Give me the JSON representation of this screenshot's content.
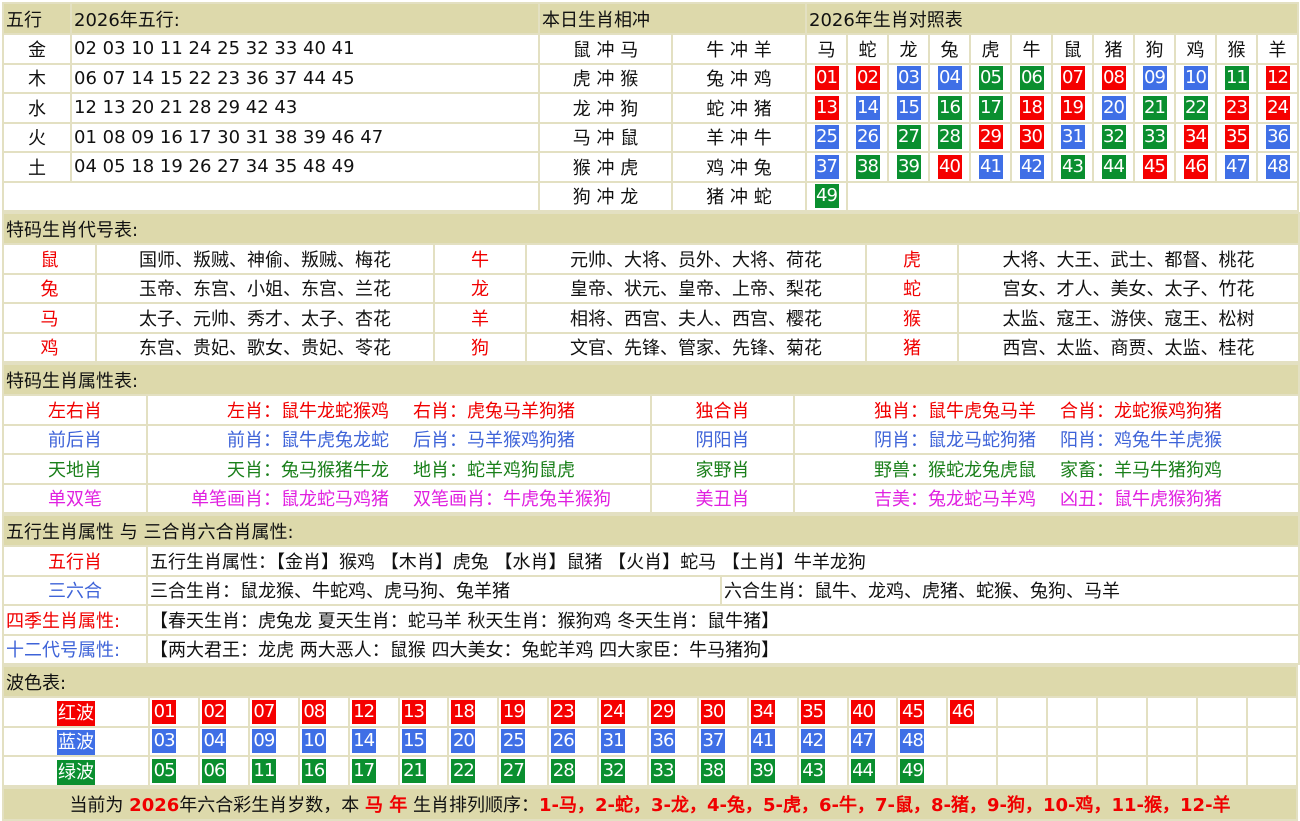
{
  "wuxing": {
    "header": "五行",
    "numbers_header": "2026年五行:",
    "chong_header": "本日生肖相冲",
    "table_header": "2026年生肖对照表",
    "rows": [
      {
        "el": "金",
        "nums": "02 03 10 11 24 25 32 33 40 41"
      },
      {
        "el": "木",
        "nums": "06 07 14 15 22 23 36 37 44 45"
      },
      {
        "el": "水",
        "nums": "12 13 20 21 28 29 42 43"
      },
      {
        "el": "火",
        "nums": "01 08 09 16 17 30 31 38 39 46 47"
      },
      {
        "el": "土",
        "nums": "04 05 18 19 26 27 34 35 48 49"
      }
    ],
    "chong": [
      [
        "鼠 冲 马",
        "牛 冲 羊"
      ],
      [
        "虎 冲 猴",
        "兔 冲 鸡"
      ],
      [
        "龙 冲 狗",
        "蛇 冲 猪"
      ],
      [
        "马 冲 鼠",
        "羊 冲 牛"
      ],
      [
        "猴 冲 虎",
        "鸡 冲 兔"
      ],
      [
        "狗 冲 龙",
        "猪 冲 蛇"
      ]
    ],
    "zodiac": [
      "马",
      "蛇",
      "龙",
      "兔",
      "虎",
      "牛",
      "鼠",
      "猪",
      "狗",
      "鸡",
      "猴",
      "羊"
    ],
    "grid": [
      [
        "01",
        "02",
        "03",
        "04",
        "05",
        "06",
        "07",
        "08",
        "09",
        "10",
        "11",
        "12"
      ],
      [
        "13",
        "14",
        "15",
        "16",
        "17",
        "18",
        "19",
        "20",
        "21",
        "22",
        "23",
        "24"
      ],
      [
        "25",
        "26",
        "27",
        "28",
        "29",
        "30",
        "31",
        "32",
        "33",
        "34",
        "35",
        "36"
      ],
      [
        "37",
        "38",
        "39",
        "40",
        "41",
        "42",
        "43",
        "44",
        "45",
        "46",
        "47",
        "48"
      ],
      [
        "49"
      ]
    ]
  },
  "colors": {
    "red": "#f50000",
    "blue": "#3f6fe6",
    "green": "#0a8f2f",
    "header_bg": "#ddd9ab"
  },
  "waves": [
    {
      "label": "红波",
      "color": "red",
      "nums": [
        "01",
        "02",
        "07",
        "08",
        "12",
        "13",
        "18",
        "19",
        "23",
        "24",
        "29",
        "30",
        "34",
        "35",
        "40",
        "45",
        "46"
      ]
    },
    {
      "label": "蓝波",
      "color": "blue",
      "nums": [
        "03",
        "04",
        "09",
        "10",
        "14",
        "15",
        "20",
        "25",
        "26",
        "31",
        "36",
        "37",
        "41",
        "42",
        "47",
        "48"
      ]
    },
    {
      "label": "绿波",
      "color": "green",
      "nums": [
        "05",
        "06",
        "11",
        "16",
        "17",
        "21",
        "22",
        "27",
        "28",
        "32",
        "33",
        "38",
        "39",
        "43",
        "44",
        "49"
      ]
    }
  ],
  "daihao": {
    "header": "特码生肖代号表:",
    "rows": [
      [
        [
          "鼠",
          "国师、叛贼、神偷、叛贼、梅花"
        ],
        [
          "牛",
          "元帅、大将、员外、大将、荷花"
        ],
        [
          "虎",
          "大将、大王、武士、都督、桃花"
        ]
      ],
      [
        [
          "兔",
          "玉帝、东宫、小姐、东宫、兰花"
        ],
        [
          "龙",
          "皇帝、状元、皇帝、上帝、梨花"
        ],
        [
          "蛇",
          "宫女、才人、美女、太子、竹花"
        ]
      ],
      [
        [
          "马",
          "太子、元帅、秀才、太子、杏花"
        ],
        [
          "羊",
          "相将、西宫、夫人、西宫、樱花"
        ],
        [
          "猴",
          "太监、寇王、游侠、寇王、松树"
        ]
      ],
      [
        [
          "鸡",
          "东宫、贵妃、歌女、贵妃、苓花"
        ],
        [
          "狗",
          "文官、先锋、管家、先锋、菊花"
        ],
        [
          "猪",
          "西宫、太监、商贾、太监、桂花"
        ]
      ]
    ]
  },
  "shuxing": {
    "header": "特码生肖属性表:",
    "rows": [
      {
        "color": "red",
        "a": [
          "左右肖",
          "左肖：鼠牛龙蛇猴鸡",
          "右肖：虎兔马羊狗猪"
        ],
        "b": [
          "独合肖",
          "独肖：鼠牛虎兔马羊",
          "合肖：龙蛇猴鸡狗猪"
        ]
      },
      {
        "color": "blue",
        "a": [
          "前后肖",
          "前肖：鼠牛虎兔龙蛇",
          "后肖：马羊猴鸡狗猪"
        ],
        "b": [
          "阴阳肖",
          "阴肖：鼠龙马蛇狗猪",
          "阳肖：鸡兔牛羊虎猴"
        ]
      },
      {
        "color": "green",
        "a": [
          "天地肖",
          "天肖：兔马猴猪牛龙",
          "地肖：蛇羊鸡狗鼠虎"
        ],
        "b": [
          "家野肖",
          "野兽：猴蛇龙兔虎鼠",
          "家畜：羊马牛猪狗鸡"
        ]
      },
      {
        "color": "mag",
        "a": [
          "单双笔",
          "单笔画肖：鼠龙蛇马鸡猪",
          "双笔画肖：牛虎兔羊猴狗"
        ],
        "b": [
          "美丑肖",
          "吉美：兔龙蛇马羊鸡",
          "凶丑：鼠牛虎猴狗猪"
        ]
      }
    ]
  },
  "sanhe": {
    "header": "五行生肖属性 与 三合肖六合肖属性:",
    "wuxing_label": "五行肖",
    "wuxing_text": "五行生肖属性：【金肖】猴鸡 【木肖】虎兔 【水肖】鼠猪 【火肖】蛇马 【土肖】牛羊龙狗",
    "sanliu_label": "三六合",
    "sanhe_text": "三合生肖：鼠龙猴、牛蛇鸡、虎马狗、兔羊猪",
    "liuhe_text": "六合生肖：鼠牛、龙鸡、虎猪、蛇猴、兔狗、马羊",
    "siji_label": "四季生肖属性:",
    "siji_text": "【春天生肖：虎兔龙 夏天生肖：蛇马羊 秋天生肖：猴狗鸡 冬天生肖：鼠牛猪】",
    "daihao_label": "十二代号属性:",
    "daihao_text": "【两大君王：龙虎 两大恶人：鼠猴 四大美女：兔蛇羊鸡 四大家臣：牛马猪狗】"
  },
  "bose": {
    "header": "波色表:"
  },
  "footer": {
    "p1": "当前为 ",
    "year": "2026",
    "p2": "年六合彩生肖岁数，本 ",
    "zodiac": "马 年",
    "p3": " 生肖排列顺序：",
    "order": "1-马，2-蛇，3-龙，4-兔，5-虎，6-牛，7-鼠，8-猪，9-狗，10-鸡，11-猴，12-羊"
  }
}
